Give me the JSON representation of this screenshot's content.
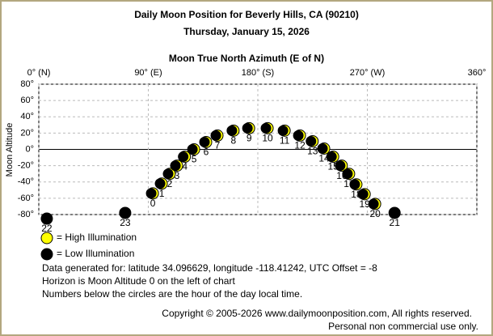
{
  "chart_data": {
    "type": "scatter",
    "title": "Daily Moon Position for Beverly Hills, CA (90210)",
    "subtitle": "Thursday, January 15, 2026",
    "x_label": "Moon True North Azimuth (E of N)",
    "y_label": "Moon Altitude",
    "xlim": [
      0,
      360
    ],
    "xticks": [
      {
        "value": 0,
        "label": "0° (N)"
      },
      {
        "value": 90,
        "label": "90° (E)"
      },
      {
        "value": 180,
        "label": "180° (S)"
      },
      {
        "value": 270,
        "label": "270° (W)"
      },
      {
        "value": 360,
        "label": "360°"
      }
    ],
    "ylim": [
      -80,
      80
    ],
    "yticks": [
      {
        "value": 80,
        "label": "80°"
      },
      {
        "value": 60,
        "label": "60°"
      },
      {
        "value": 40,
        "label": "40°"
      },
      {
        "value": 20,
        "label": "20°"
      },
      {
        "value": 0,
        "label": "0°"
      },
      {
        "value": -20,
        "label": "-20°"
      },
      {
        "value": -40,
        "label": "-40°"
      },
      {
        "value": -60,
        "label": "-60°"
      },
      {
        "value": -80,
        "label": "-80°"
      }
    ],
    "grid": true,
    "series": [
      {
        "name": "= High Illumination",
        "color": "#ffff00",
        "x": [
          93.7,
          101,
          107.6,
          113.6,
          120,
          127.6,
          137.5,
          146.8,
          160,
          172.8,
          188,
          202,
          214.6,
          225,
          234.5,
          241.9,
          249,
          255,
          261,
          267.8,
          276.4
        ],
        "values": [
          -54,
          -42,
          -30,
          -20,
          -9,
          0,
          9,
          17,
          23,
          26,
          26,
          23,
          17,
          10,
          1,
          -9,
          -20,
          -30,
          -43,
          -55,
          -67
        ],
        "labels": [
          "0",
          "1",
          "2",
          "3",
          "4",
          "5",
          "6",
          "7",
          "8",
          "9",
          "10",
          "11",
          "12",
          "13",
          "14",
          "15",
          "16",
          "17",
          "18",
          "19",
          "20"
        ]
      },
      {
        "name": "= Low Illumination",
        "color": "#000000",
        "x": [
          292.4,
          6.6,
          71
        ],
        "values": [
          -78,
          -85,
          -78
        ],
        "labels": [
          "21",
          "22",
          "23"
        ]
      }
    ],
    "notes": [
      "Data generated for: latitude 34.096629, longitude -118.41242, UTC Offset = -8",
      "Horizon is Moon Altitude 0 on the left of chart",
      "Numbers below the circles are the hour of the day local time."
    ],
    "copyright": [
      "Copyright © 2005-2026 www.dailymoonposition.com, All rights reserved.",
      "Personal non commercial use only."
    ]
  }
}
